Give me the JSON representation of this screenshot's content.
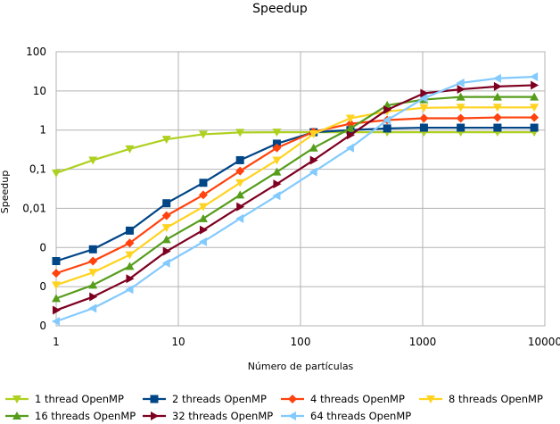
{
  "chart_data": {
    "type": "line",
    "title": "Speedup",
    "xlabel": "Número de partículas",
    "ylabel": "Speedup",
    "xscale": "log",
    "yscale": "log",
    "xlim": [
      1,
      10000
    ],
    "ylim": [
      1e-05,
      100
    ],
    "grid": true,
    "legend_position": "bottom",
    "x_ticks": [
      {
        "value": 1,
        "label": "1"
      },
      {
        "value": 10,
        "label": "10"
      },
      {
        "value": 100,
        "label": "100"
      },
      {
        "value": 1000,
        "label": "1000"
      },
      {
        "value": 10000,
        "label": "10000"
      }
    ],
    "y_ticks": [
      {
        "value": 100,
        "label": "100"
      },
      {
        "value": 10,
        "label": "10"
      },
      {
        "value": 1,
        "label": "1"
      },
      {
        "value": 0.1,
        "label": "0,1"
      },
      {
        "value": 0.01,
        "label": "0,01"
      },
      {
        "value": 0.001,
        "label": "0"
      },
      {
        "value": 0.0001,
        "label": "0"
      },
      {
        "value": 1e-05,
        "label": "0"
      }
    ],
    "x": [
      1,
      2,
      4,
      8,
      16,
      32,
      64,
      128,
      256,
      512,
      1024,
      2048,
      4096,
      8192
    ],
    "series": [
      {
        "name": "1 thread OpenMP",
        "color": "#aed021",
        "marker": "triangle-down",
        "values": [
          0.08,
          0.17,
          0.33,
          0.58,
          0.78,
          0.87,
          0.88,
          0.88,
          0.88,
          0.88,
          0.88,
          0.88,
          0.88,
          0.88
        ]
      },
      {
        "name": "2 threads OpenMP",
        "color": "#004586",
        "marker": "square",
        "values": [
          0.00045,
          0.0009,
          0.0027,
          0.0135,
          0.045,
          0.17,
          0.45,
          0.88,
          1.0,
          1.1,
          1.15,
          1.15,
          1.15,
          1.15
        ]
      },
      {
        "name": "4 threads OpenMP",
        "color": "#ff420e",
        "marker": "diamond",
        "values": [
          0.00022,
          0.00045,
          0.0013,
          0.0065,
          0.022,
          0.09,
          0.35,
          0.9,
          1.45,
          1.8,
          2.0,
          2.0,
          2.1,
          2.1
        ]
      },
      {
        "name": "8 threads OpenMP",
        "color": "#ffd320",
        "marker": "triangle-down",
        "values": [
          0.00011,
          0.00023,
          0.00065,
          0.0032,
          0.011,
          0.045,
          0.17,
          0.8,
          2.0,
          3.0,
          3.7,
          3.8,
          3.8,
          3.8
        ]
      },
      {
        "name": "16 threads OpenMP",
        "color": "#579d1c",
        "marker": "triangle-up",
        "values": [
          5e-05,
          0.00011,
          0.00033,
          0.0016,
          0.0055,
          0.022,
          0.085,
          0.35,
          1.1,
          4.3,
          6.0,
          7.0,
          7.0,
          7.0
        ]
      },
      {
        "name": "32 threads OpenMP",
        "color": "#7e0021",
        "marker": "triangle-right",
        "values": [
          2.5e-05,
          5.5e-05,
          0.00016,
          0.0008,
          0.0028,
          0.011,
          0.042,
          0.17,
          0.75,
          3.3,
          8.7,
          11.0,
          13.0,
          14.0
        ]
      },
      {
        "name": "64 threads OpenMP",
        "color": "#83caff",
        "marker": "triangle-left",
        "values": [
          1.3e-05,
          2.8e-05,
          8.5e-05,
          0.0004,
          0.0014,
          0.0055,
          0.021,
          0.085,
          0.35,
          1.8,
          6.5,
          16.0,
          21.0,
          23.0
        ]
      }
    ]
  }
}
